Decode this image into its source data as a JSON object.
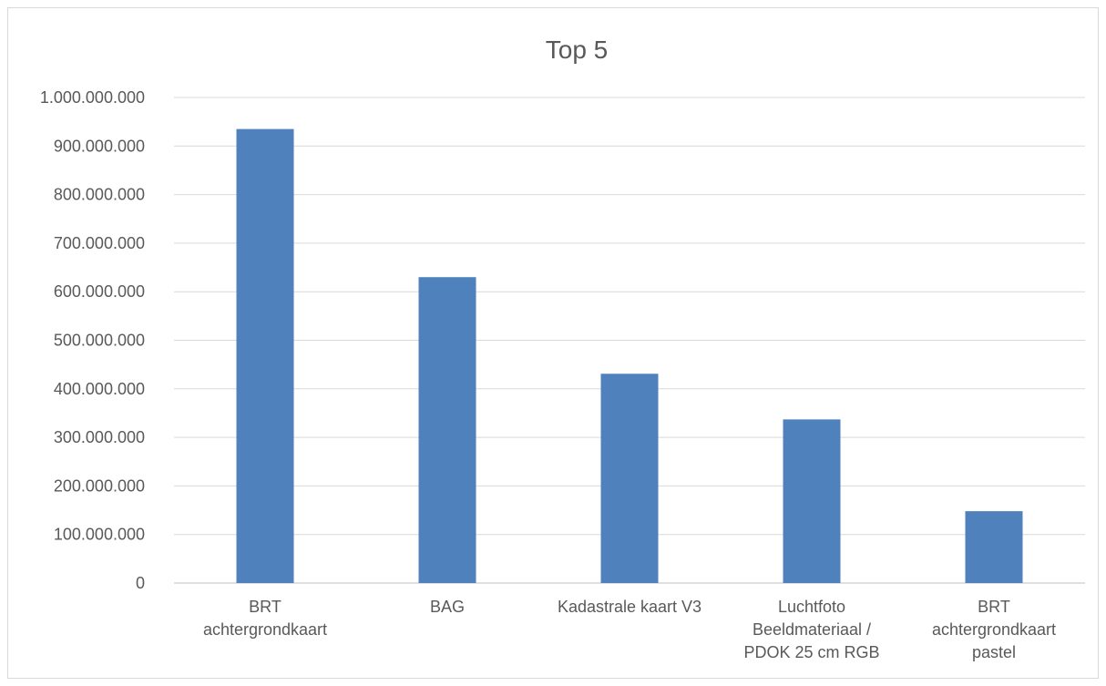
{
  "chart_data": {
    "type": "bar",
    "title": "Top 5",
    "xlabel": "",
    "ylabel": "",
    "ylim": [
      0,
      1000000000
    ],
    "ytick_step": 100000000,
    "yticks": [
      "0",
      "100.000.000",
      "200.000.000",
      "300.000.000",
      "400.000.000",
      "500.000.000",
      "600.000.000",
      "700.000.000",
      "800.000.000",
      "900.000.000",
      "1.000.000.000"
    ],
    "categories": [
      [
        "BRT",
        "achtergrondkaart"
      ],
      [
        "BAG"
      ],
      [
        "Kadastrale kaart V3"
      ],
      [
        "Luchtfoto",
        "Beeldmateriaal /",
        "PDOK 25 cm RGB"
      ],
      [
        "BRT",
        "achtergrondkaart",
        "pastel"
      ]
    ],
    "values": [
      935000000,
      630000000,
      431000000,
      337000000,
      148000000
    ],
    "bar_color": "#4f81bd",
    "grid": true,
    "legend": "none"
  }
}
